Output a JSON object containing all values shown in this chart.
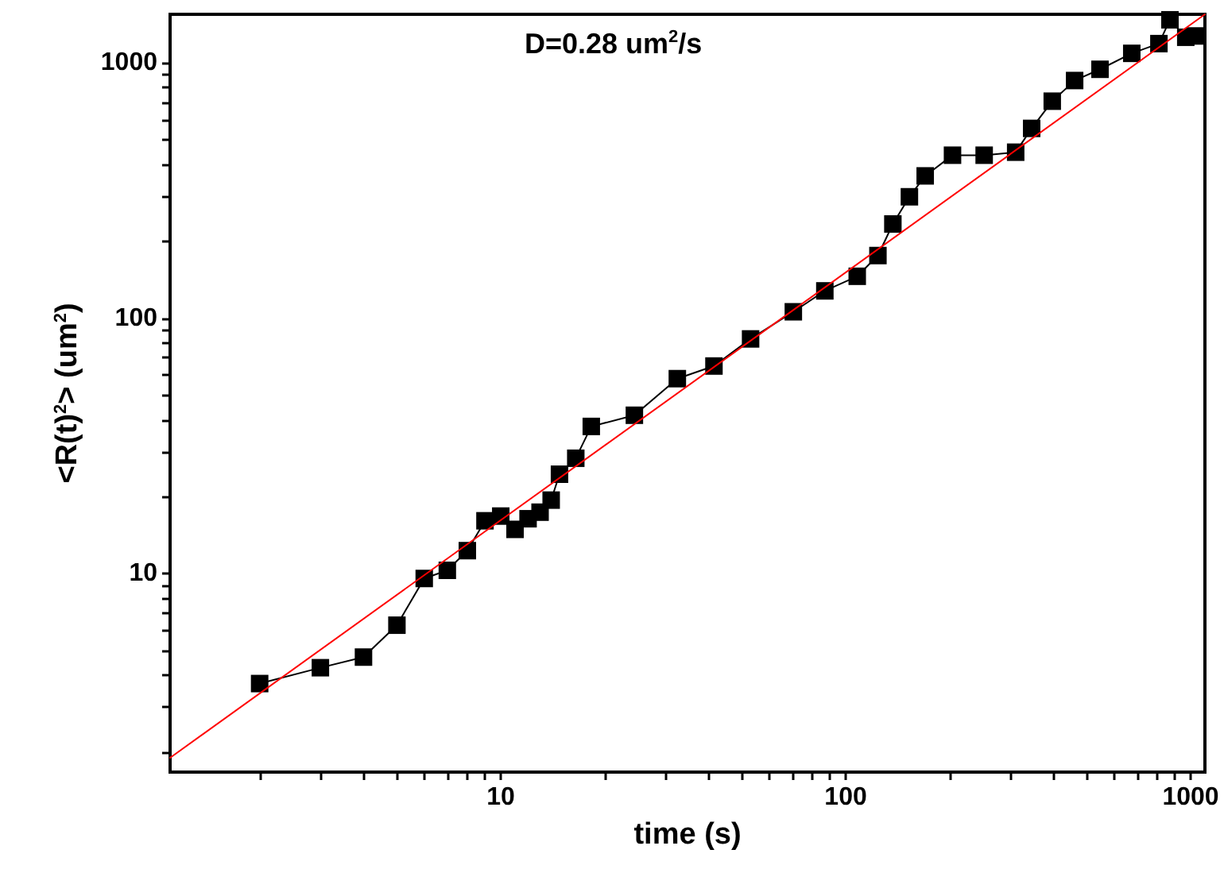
{
  "chart_data": {
    "type": "line",
    "xlabel": "time (s)",
    "ylabel": "<R(t)$^{2}$> (um$^{2}$)",
    "annotations": [
      "D=0.28 um$^{2}$/s"
    ],
    "log": "xy",
    "line_style": "solid",
    "xlim": [
      1.1,
      1100
    ],
    "ylim": [
      1.67,
      1550
    ],
    "xticks": [
      {
        "value": 2,
        "label": null
      },
      {
        "value": 3,
        "label": null
      },
      {
        "value": 4,
        "label": null
      },
      {
        "value": 5,
        "label": null
      },
      {
        "value": 6,
        "label": null
      },
      {
        "value": 7,
        "label": null
      },
      {
        "value": 8,
        "label": null
      },
      {
        "value": 9,
        "label": null
      },
      10,
      {
        "value": 20,
        "label": null
      },
      {
        "value": 30,
        "label": null
      },
      {
        "value": 40,
        "label": null
      },
      {
        "value": 50,
        "label": null
      },
      {
        "value": 60,
        "label": null
      },
      {
        "value": 70,
        "label": null
      },
      {
        "value": 80,
        "label": null
      },
      {
        "value": 90,
        "label": null
      },
      100,
      {
        "value": 200,
        "label": null
      },
      {
        "value": 300,
        "label": null
      },
      {
        "value": 400,
        "label": null
      },
      {
        "value": 500,
        "label": null
      },
      {
        "value": 600,
        "label": null
      },
      {
        "value": 700,
        "label": null
      },
      {
        "value": 800,
        "label": null
      },
      {
        "value": 900,
        "label": null
      },
      1000
    ],
    "yticks": [
      {
        "value": 2,
        "label": null
      },
      {
        "value": 3,
        "label": null
      },
      {
        "value": 4,
        "label": null
      },
      {
        "value": 5,
        "label": null
      },
      {
        "value": 6,
        "label": null
      },
      {
        "value": 7,
        "label": null
      },
      {
        "value": 8,
        "label": null
      },
      {
        "value": 9,
        "label": null
      },
      10,
      {
        "value": 20,
        "label": null
      },
      {
        "value": 30,
        "label": null
      },
      {
        "value": 40,
        "label": null
      },
      {
        "value": 50,
        "label": null
      },
      {
        "value": 60,
        "label": null
      },
      {
        "value": 70,
        "label": null
      },
      {
        "value": 80,
        "label": null
      },
      {
        "value": 90,
        "label": null
      },
      100,
      {
        "value": 200,
        "label": null
      },
      {
        "value": 300,
        "label": null
      },
      {
        "value": 400,
        "label": null
      },
      {
        "value": 500,
        "label": null
      },
      {
        "value": 600,
        "label": null
      },
      {
        "value": 700,
        "label": null
      },
      {
        "value": 800,
        "label": null
      },
      {
        "value": 900,
        "label": null
      },
      1000
    ],
    "series": [
      {
        "color": "#000000",
        "marker": "square",
        "x": [
          2,
          3,
          4,
          5,
          6,
          7,
          8,
          9,
          10,
          11,
          12,
          13,
          14,
          14.8,
          16.5,
          18.3,
          24.4,
          32.5,
          41.5,
          53,
          70.5,
          87,
          108,
          124,
          137,
          153,
          170,
          204,
          252,
          311,
          346,
          397,
          461,
          546,
          675,
          809,
          871,
          968,
          1030
        ],
        "values": [
          3.71,
          4.28,
          4.71,
          6.28,
          9.57,
          10.3,
          12.3,
          16.1,
          16.8,
          14.9,
          16.4,
          17.4,
          19.4,
          24.5,
          28.3,
          37.7,
          41.7,
          58,
          65,
          83,
          106,
          128,
          146,
          176,
          234,
          299,
          361,
          435,
          435,
          447,
          554,
          708,
          853,
          944,
          1090,
          1190,
          1475,
          1260,
          1275
        ]
      },
      {
        "color": "#ff0000",
        "marker": "none",
        "x": [
          1.1,
          1100
        ],
        "values": [
          1.9,
          1550
        ]
      }
    ]
  }
}
